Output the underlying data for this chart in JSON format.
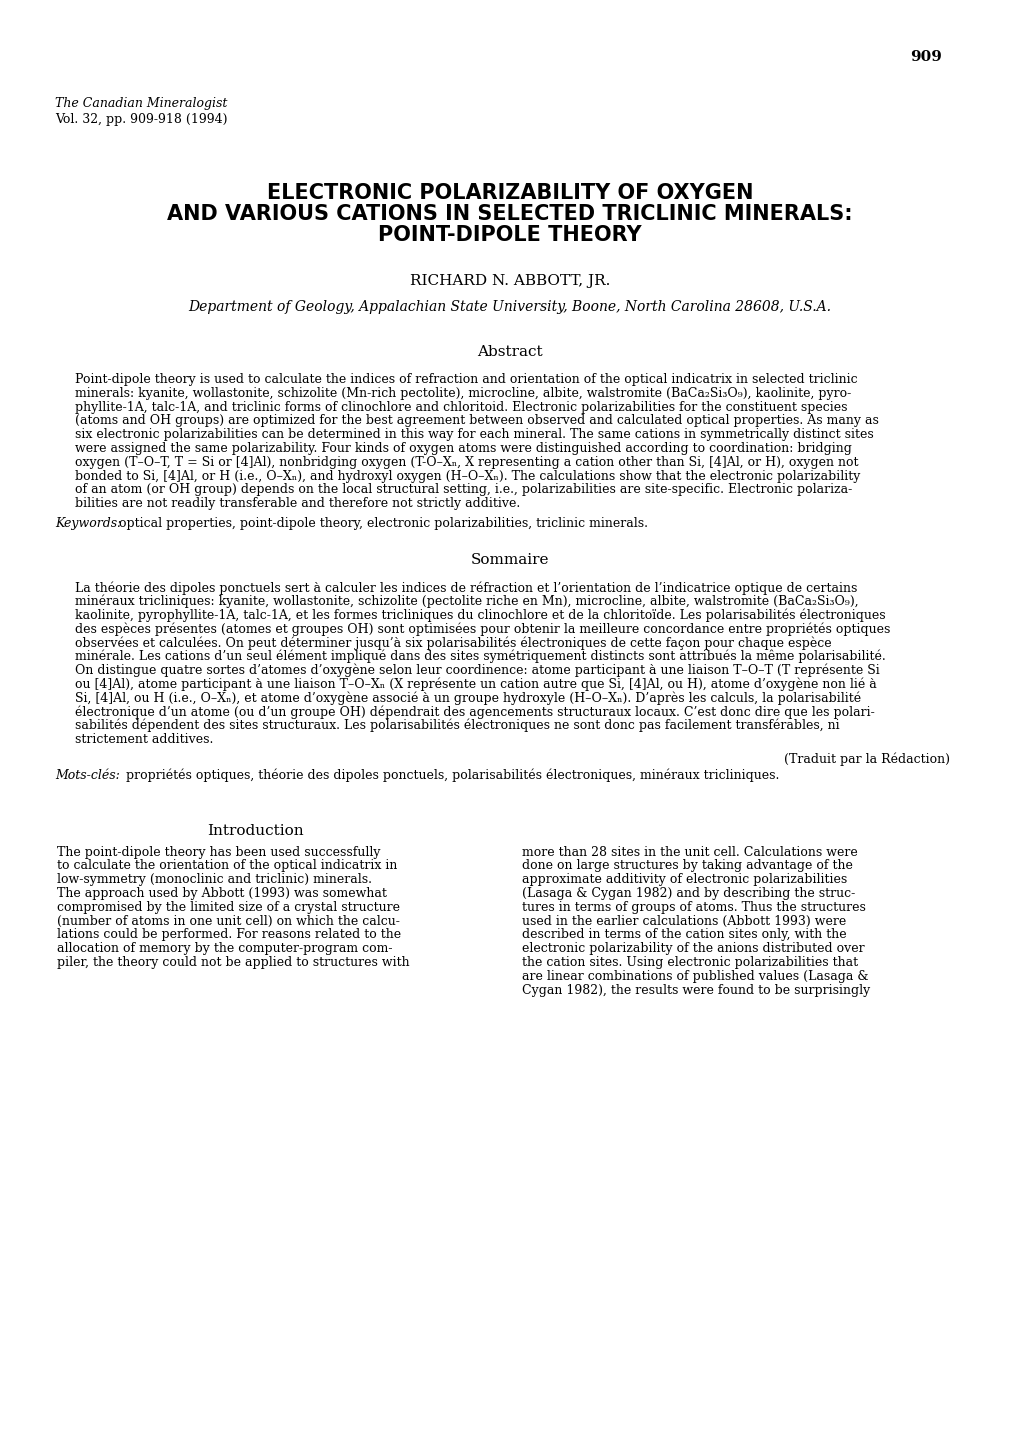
{
  "page_number": "909",
  "journal_line1": "The Canadian Mineralogist",
  "journal_line2": "Vol. 32, pp. 909-918 (1994)",
  "title_line1": "ELECTRONIC POLARIZABILITY OF OXYGEN",
  "title_line2": "AND VARIOUS CATIONS IN SELECTED TRICLINIC MINERALS:",
  "title_line3": "POINT-DIPOLE THEORY",
  "author": "RICHARD N. ABBOTT, JR.",
  "affiliation": "Department of Geology, Appalachian State University, Boone, North Carolina 28608, U.S.A.",
  "abstract_header": "Abstract",
  "keywords_label": "Keywords:",
  "keywords_text": " optical properties, point-dipole theory, electronic polarizabilities, triclinic minerals.",
  "sommaire_header": "Sommaire",
  "traduit": "(Traduit par la Rédaction)",
  "mots_cles_label": "Mots-clés:",
  "mots_cles_text": " propriétés optiques, théorie des dipoles ponctuels, polarisabilités électroniques, minéraux tricliniques.",
  "intro_header": "Introduction",
  "bg_color": "#ffffff",
  "text_color": "#000000",
  "abstract_lines": [
    "Point-dipole theory is used to calculate the indices of refraction and orientation of the optical indicatrix in selected triclinic",
    "minerals: kyanite, wollastonite, schizolite (Mn-rich pectolite), microcline, albite, walstromite (BaCa₂Si₃O₉), kaolinite, pyro-",
    "phyllite-1A, talc-1A, and triclinic forms of clinochlore and chloritoid. Electronic polarizabilities for the constituent species",
    "(atoms and OH groups) are optimized for the best agreement between observed and calculated optical properties. As many as",
    "six electronic polarizabilities can be determined in this way for each mineral. The same cations in symmetrically distinct sites",
    "were assigned the same polarizability. Four kinds of oxygen atoms were distinguished according to coordination: bridging",
    "oxygen (T–O–T, T = Si or [4]Al), nonbridging oxygen (T-O–Xₙ, X representing a cation other than Si, [4]Al, or H), oxygen not",
    "bonded to Si, [4]Al, or H (i.e., O–Xₙ), and hydroxyl oxygen (H–O–Xₙ). The calculations show that the electronic polarizability",
    "of an atom (or OH group) depends on the local structural setting, i.e., polarizabilities are site-specific. Electronic polariza-",
    "bilities are not readily transferable and therefore not strictly additive."
  ],
  "sommaire_lines": [
    "La théorie des dipoles ponctuels sert à calculer les indices de réfraction et l’orientation de l’indicatrice optique de certains",
    "minéraux tricliniques: kyanite, wollastonite, schizolite (pectolite riche en Mn), microcline, albite, walstromite (BaCa₂Si₃O₉),",
    "kaolinite, pyrophyllite-1A, talc-1A, et les formes tricliniques du clinochlore et de la chloritoïde. Les polarisabilités électroniques",
    "des espèces présentes (atomes et groupes OH) sont optimisées pour obtenir la meilleure concordance entre propriétés optiques",
    "observées et calculées. On peut déterminer jusqu’à six polarisabilités électroniques de cette façon pour chaque espèce",
    "minérale. Les cations d’un seul élément impliqué dans des sites symétriquement distincts sont attribués la même polarisabilité.",
    "On distingue quatre sortes d’atomes d’oxygène selon leur coordinence: atome participant à une liaison T–O–T (T représente Si",
    "ou [4]Al), atome participant à une liaison T–O–Xₙ (X représente un cation autre que Si, [4]Al, ou H), atome d’oxygène non lié à",
    "Si, [4]Al, ou H (i.e., O–Xₙ), et atome d’oxygène associé à un groupe hydroxyle (H–O–Xₙ). D’après les calculs, la polarisabilité",
    "électronique d’un atome (ou d’un groupe OH) dépendrait des agencements structuraux locaux. C’est donc dire que les polari-",
    "sabilités dépendent des sites structuraux. Les polarisabilités électroniques ne sont donc pas facilement transférables, ni",
    "strictement additives."
  ],
  "intro_col1_lines": [
    "The point-dipole theory has been used successfully",
    "to calculate the orientation of the optical indicatrix in",
    "low-symmetry (monoclinic and triclinic) minerals.",
    "The approach used by Abbott (1993) was somewhat",
    "compromised by the limited size of a crystal structure",
    "(number of atoms in one unit cell) on which the calcu-",
    "lations could be performed. For reasons related to the",
    "allocation of memory by the computer-program com-",
    "piler, the theory could not be applied to structures with"
  ],
  "intro_col2_lines": [
    "more than 28 sites in the unit cell. Calculations were",
    "done on large structures by taking advantage of the",
    "approximate additivity of electronic polarizabilities",
    "(Lasaga & Cygan 1982) and by describing the struc-",
    "tures in terms of groups of atoms. Thus the structures",
    "used in the earlier calculations (Abbott 1993) were",
    "described in terms of the cation sites only, with the",
    "electronic polarizability of the anions distributed over",
    "the cation sites. Using electronic polarizabilities that",
    "are linear combinations of published values (Lasaga &",
    "Cygan 1982), the results were found to be surprisingly"
  ]
}
